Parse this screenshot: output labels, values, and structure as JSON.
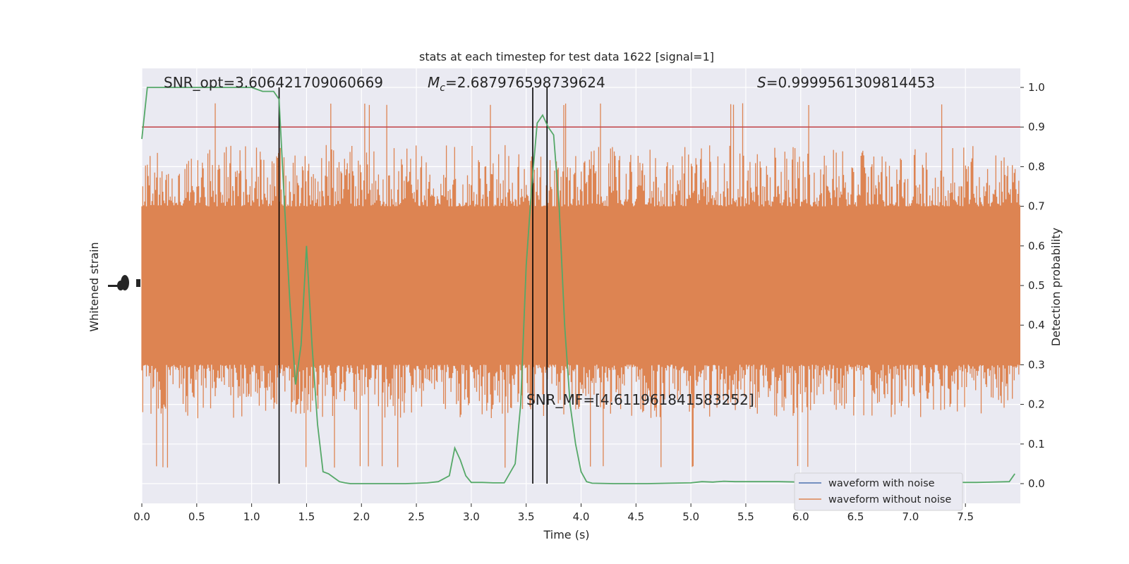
{
  "chart_data": {
    "type": "line",
    "title": "stats at each timestep for test data 1622 [signal=1]",
    "xlabel": "Time (s)",
    "ylabel_left": "Whitened strain",
    "ylabel_right": "Detection probability",
    "xlim": [
      0,
      8
    ],
    "ylim_right": [
      -0.05,
      1.05
    ],
    "x_ticks": [
      0.0,
      0.5,
      1.0,
      1.5,
      2.0,
      2.5,
      3.0,
      3.5,
      4.0,
      4.5,
      5.0,
      5.5,
      6.0,
      6.5,
      7.0,
      7.5
    ],
    "x_tick_labels": [
      "0.0",
      "0.5",
      "1.0",
      "1.5",
      "2.0",
      "2.5",
      "3.0",
      "3.5",
      "4.0",
      "4.5",
      "5.0",
      "5.5",
      "6.0",
      "6.5",
      "7.0",
      "7.5"
    ],
    "y_right_ticks": [
      0.0,
      0.1,
      0.2,
      0.3,
      0.4,
      0.5,
      0.6,
      0.7,
      0.8,
      0.9,
      1.0
    ],
    "y_right_tick_labels": [
      "0.0",
      "0.1",
      "0.2",
      "0.3",
      "0.4",
      "0.5",
      "0.6",
      "0.7",
      "0.8",
      "0.9",
      "1.0"
    ],
    "grid": true,
    "legend": {
      "placement": "lower-right",
      "entries": [
        {
          "label": "waveform with noise",
          "color": "#4c72b0"
        },
        {
          "label": "waveform without noise",
          "color": "#dd8452"
        }
      ]
    },
    "annotations": {
      "snr_opt": "SNR_opt=3.606421709060669",
      "mc_prefix": "M",
      "mc_sub": "c",
      "mc_value": "=2.687976598739624",
      "s_prefix": "S",
      "s_value": "=0.9999561309814453",
      "snr_mf": "SNR_MF=[4.611961841583252]"
    },
    "threshold": {
      "y": 0.9,
      "color": "#c44e52"
    },
    "vlines_x": [
      1.25,
      3.56,
      3.69
    ],
    "series": [
      {
        "color": "#55a868",
        "x": [
          0.0,
          0.05,
          0.1,
          0.2,
          0.3,
          0.4,
          0.5,
          0.6,
          0.7,
          0.8,
          0.9,
          1.0,
          1.1,
          1.2,
          1.25,
          1.3,
          1.35,
          1.4,
          1.45,
          1.5,
          1.55,
          1.6,
          1.65,
          1.7,
          1.75,
          1.8,
          1.85,
          1.9,
          2.0,
          2.2,
          2.4,
          2.6,
          2.7,
          2.8,
          2.85,
          2.9,
          2.95,
          3.0,
          3.1,
          3.2,
          3.3,
          3.4,
          3.45,
          3.5,
          3.55,
          3.6,
          3.65,
          3.7,
          3.75,
          3.8,
          3.85,
          3.9,
          3.95,
          4.0,
          4.05,
          4.1,
          4.3,
          4.6,
          4.8,
          5.0,
          5.1,
          5.2,
          5.3,
          5.4,
          5.5,
          5.8,
          6.0,
          6.2,
          6.5,
          6.8,
          7.0,
          7.3,
          7.6,
          7.9,
          7.95
        ],
        "y": [
          0.87,
          1.0,
          1.0,
          1.0,
          1.0,
          1.0,
          1.0,
          1.0,
          1.0,
          1.0,
          1.0,
          1.0,
          0.99,
          0.99,
          0.97,
          0.7,
          0.45,
          0.25,
          0.35,
          0.6,
          0.35,
          0.15,
          0.03,
          0.025,
          0.015,
          0.005,
          0.002,
          0.0,
          0.0,
          0.0,
          0.0,
          0.002,
          0.005,
          0.02,
          0.09,
          0.06,
          0.02,
          0.003,
          0.003,
          0.002,
          0.002,
          0.05,
          0.2,
          0.55,
          0.75,
          0.91,
          0.93,
          0.9,
          0.88,
          0.7,
          0.4,
          0.2,
          0.1,
          0.03,
          0.005,
          0.001,
          0.0,
          0.0,
          0.001,
          0.002,
          0.005,
          0.004,
          0.006,
          0.005,
          0.005,
          0.005,
          0.004,
          0.004,
          0.003,
          0.004,
          0.004,
          0.003,
          0.003,
          0.005,
          0.025
        ]
      }
    ]
  }
}
